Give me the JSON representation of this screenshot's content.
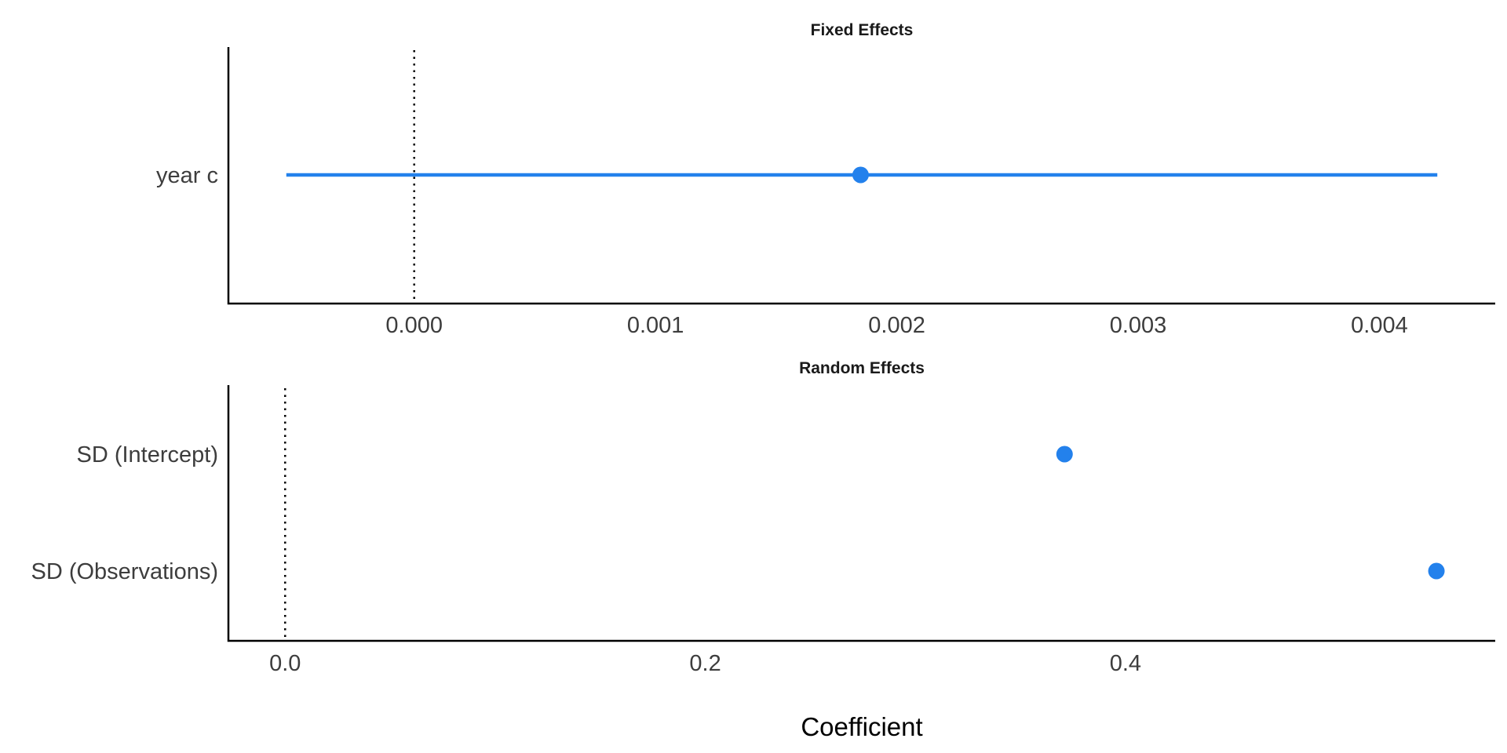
{
  "chart_data": [
    {
      "type": "scatter",
      "title": "Fixed Effects",
      "point_color": "#2381ec",
      "categories": [
        "year c"
      ],
      "xlim": [
        -0.00077,
        0.00448
      ],
      "x_ticks": [
        0.0,
        0.001,
        0.002,
        0.003,
        0.004
      ],
      "x_tick_labels": [
        "0.000",
        "0.001",
        "0.002",
        "0.003",
        "0.004"
      ],
      "reference_line": 0,
      "points": [
        {
          "label": "year c",
          "estimate": 0.00185,
          "ci_low": -0.00053,
          "ci_high": 0.00424
        }
      ],
      "grid": false
    },
    {
      "type": "scatter",
      "title": "Random Effects",
      "point_color": "#2381ec",
      "categories": [
        "SD (Intercept)",
        "SD (Observations)"
      ],
      "xlim": [
        -0.027,
        0.576
      ],
      "x_ticks": [
        0.0,
        0.2,
        0.4
      ],
      "x_tick_labels": [
        "0.0",
        "0.2",
        "0.4"
      ],
      "reference_line": 0,
      "points": [
        {
          "label": "SD (Intercept)",
          "estimate": 0.371
        },
        {
          "label": "SD (Observations)",
          "estimate": 0.548
        }
      ],
      "grid": false
    }
  ],
  "xlabel": "Coefficient"
}
